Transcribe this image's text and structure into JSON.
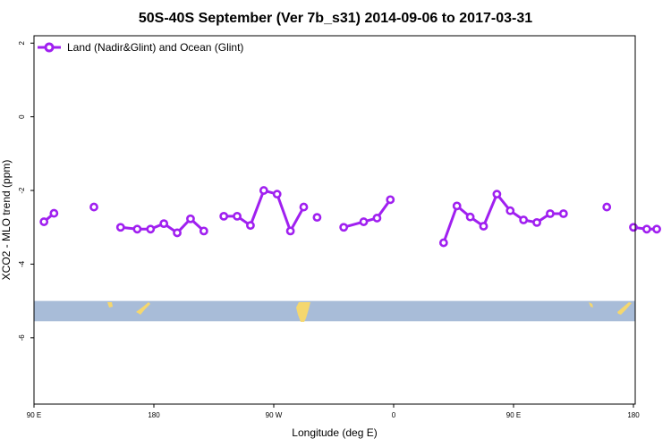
{
  "chart_data": {
    "type": "line",
    "title": "50S-40S September (Ver 7b_s31)   2014-09-06 to 2017-03-31",
    "xlabel": "Longitude (deg E)",
    "ylabel": "XCO2 - MLO trend (ppm)",
    "xlim": [
      90,
      450
    ],
    "ylim": [
      -7.8,
      2.2
    ],
    "x_ticks": [
      {
        "value": 90,
        "label": "90 E"
      },
      {
        "value": 180,
        "label": "180"
      },
      {
        "value": 270,
        "label": "90 W"
      },
      {
        "value": 360,
        "label": "0"
      },
      {
        "value": 450,
        "label": "90 E"
      },
      {
        "value": 540,
        "label": "180"
      }
    ],
    "y_ticks": [
      {
        "value": 2,
        "label": "2"
      },
      {
        "value": 0,
        "label": "0"
      },
      {
        "value": -2,
        "label": "-2"
      },
      {
        "value": -4,
        "label": "-4"
      },
      {
        "value": -6,
        "label": "-6"
      }
    ],
    "legend": {
      "position": "top-left"
    },
    "colors": {
      "series": "#a020f0",
      "ocean_band": "#a8bcd8",
      "land": "#f5d76e"
    },
    "series": [
      {
        "name": "Land (Nadir&Glint) and Ocean (Glint)",
        "segments": [
          {
            "x": [
              97.5,
              105
            ],
            "y": [
              -2.85,
              -2.62
            ]
          },
          {
            "x": [
              135
            ],
            "y": [
              -2.45
            ]
          },
          {
            "x": [
              155,
              167.5,
              177.5,
              187.5,
              197.5,
              207.5,
              217.5
            ],
            "y": [
              -3.0,
              -3.05,
              -3.05,
              -2.9,
              -3.15,
              -2.77,
              -3.1
            ]
          },
          {
            "x": [
              232.5,
              242.5,
              252.5,
              262.5,
              272.5,
              282.5,
              292.5
            ],
            "y": [
              -2.7,
              -2.7,
              -2.95,
              -2.0,
              -2.1,
              -3.1,
              -2.45
            ]
          },
          {
            "x": [
              302.5
            ],
            "y": [
              -2.73
            ]
          },
          {
            "x": [
              322.5,
              337.5,
              347.5,
              357.5
            ],
            "y": [
              -3.0,
              -2.85,
              -2.75,
              -2.25
            ]
          },
          {
            "x": [
              397.5,
              407.5,
              417.5,
              427.5,
              437.5,
              447.5,
              457.5,
              467.5,
              477.5,
              487.5
            ],
            "y": [
              -3.42,
              -2.42,
              -2.72,
              -2.97,
              -2.1,
              -2.55,
              -2.8,
              -2.87,
              -2.63,
              -2.63
            ]
          },
          {
            "x": [
              520
            ],
            "y": [
              -2.45
            ]
          },
          {
            "x": [
              540,
              550,
              557.5
            ],
            "y": [
              -3.0,
              -3.05,
              -3.05
            ]
          }
        ]
      }
    ],
    "band": {
      "y_from": -5.55,
      "y_to": -5.0
    }
  }
}
